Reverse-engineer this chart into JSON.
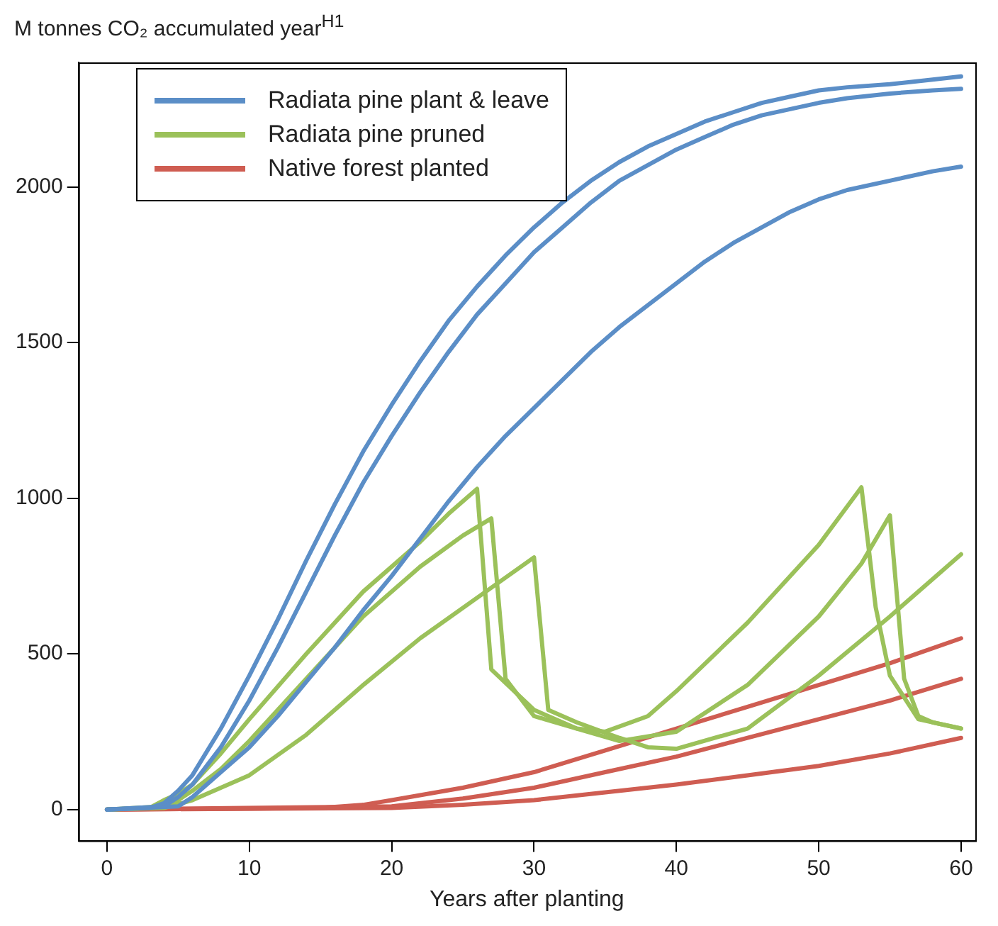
{
  "chart_data": {
    "type": "line",
    "ylabel": "M tonnes CO₂ accumulated year$^{H1}$",
    "xlabel": "Years after planting",
    "xlim": [
      -2,
      61
    ],
    "xticks": [
      0,
      10,
      20,
      30,
      40,
      50,
      60
    ],
    "ylim": [
      -100,
      2400
    ],
    "yticks": [
      0,
      500,
      1000,
      1500,
      2000
    ],
    "grid": false,
    "legend": "top left",
    "marker": "none",
    "line_style": "solid",
    "series": [
      {
        "name": "Radiata pine plant & leave",
        "color": "#5b8ec7",
        "x": [
          0,
          3,
          4,
          5,
          6,
          8,
          10,
          12,
          14,
          16,
          18,
          20,
          22,
          24,
          26,
          28,
          30,
          32,
          34,
          36,
          38,
          40,
          42,
          44,
          46,
          48,
          50,
          52,
          55,
          58,
          60
        ],
        "values": [
          0,
          5,
          20,
          60,
          110,
          260,
          430,
          610,
          800,
          980,
          1150,
          1300,
          1440,
          1570,
          1680,
          1780,
          1870,
          1950,
          2020,
          2080,
          2130,
          2170,
          2210,
          2240,
          2270,
          2290,
          2310,
          2320,
          2330,
          2345,
          2355
        ]
      },
      {
        "color": "#5b8ec7",
        "x": [
          0,
          4,
          5,
          6,
          8,
          10,
          12,
          14,
          16,
          18,
          20,
          22,
          24,
          26,
          28,
          30,
          32,
          34,
          36,
          38,
          40,
          42,
          44,
          46,
          48,
          50,
          52,
          55,
          58,
          60
        ],
        "values": [
          0,
          10,
          40,
          80,
          200,
          350,
          520,
          700,
          880,
          1050,
          1200,
          1340,
          1470,
          1590,
          1690,
          1790,
          1870,
          1950,
          2020,
          2070,
          2120,
          2160,
          2200,
          2230,
          2250,
          2270,
          2285,
          2300,
          2310,
          2315
        ]
      },
      {
        "color": "#5b8ec7",
        "x": [
          0,
          5,
          6,
          8,
          10,
          12,
          14,
          16,
          18,
          20,
          22,
          24,
          26,
          28,
          30,
          32,
          34,
          36,
          38,
          40,
          42,
          44,
          46,
          48,
          50,
          52,
          55,
          58,
          60
        ],
        "values": [
          0,
          10,
          40,
          120,
          200,
          300,
          410,
          520,
          640,
          750,
          870,
          990,
          1100,
          1200,
          1290,
          1380,
          1470,
          1550,
          1620,
          1690,
          1760,
          1820,
          1870,
          1920,
          1960,
          1990,
          2020,
          2050,
          2065
        ]
      },
      {
        "name": "Radiata pine pruned",
        "color": "#9bc15a",
        "x": [
          0,
          3,
          4,
          5,
          6,
          8,
          10,
          14,
          18,
          22,
          24,
          26,
          27,
          30,
          33,
          35,
          38,
          40,
          45,
          50,
          53,
          54,
          55,
          57,
          60
        ],
        "values": [
          0,
          5,
          30,
          50,
          80,
          180,
          290,
          500,
          700,
          860,
          950,
          1030,
          450,
          320,
          260,
          250,
          300,
          380,
          600,
          850,
          1035,
          650,
          430,
          290,
          260
        ]
      },
      {
        "color": "#9bc15a",
        "x": [
          0,
          4,
          5,
          6,
          8,
          10,
          14,
          18,
          22,
          25,
          27,
          28,
          30,
          33,
          36,
          40,
          45,
          50,
          53,
          55,
          56,
          57,
          58,
          60
        ],
        "values": [
          0,
          10,
          30,
          60,
          130,
          220,
          420,
          620,
          780,
          880,
          935,
          420,
          300,
          260,
          220,
          250,
          400,
          620,
          790,
          945,
          420,
          300,
          280,
          260
        ]
      },
      {
        "color": "#9bc15a",
        "x": [
          0,
          4,
          6,
          8,
          10,
          14,
          18,
          22,
          26,
          30,
          31,
          33,
          36,
          38,
          40,
          45,
          50,
          55,
          60
        ],
        "values": [
          0,
          5,
          30,
          70,
          110,
          240,
          400,
          550,
          680,
          810,
          320,
          280,
          230,
          200,
          195,
          260,
          430,
          620,
          820
        ]
      },
      {
        "name": "Native forest planted",
        "color": "#cf5d52",
        "x": [
          0,
          15,
          18,
          20,
          25,
          30,
          35,
          40,
          45,
          50,
          55,
          60
        ],
        "values": [
          0,
          5,
          15,
          30,
          70,
          120,
          190,
          260,
          330,
          400,
          470,
          550
        ]
      },
      {
        "color": "#cf5d52",
        "x": [
          0,
          20,
          25,
          30,
          35,
          40,
          45,
          50,
          55,
          60
        ],
        "values": [
          0,
          10,
          35,
          70,
          120,
          170,
          230,
          290,
          350,
          420
        ]
      },
      {
        "color": "#cf5d52",
        "x": [
          0,
          20,
          25,
          30,
          35,
          40,
          45,
          50,
          55,
          60
        ],
        "values": [
          0,
          5,
          15,
          30,
          55,
          80,
          110,
          140,
          180,
          230
        ]
      }
    ]
  }
}
